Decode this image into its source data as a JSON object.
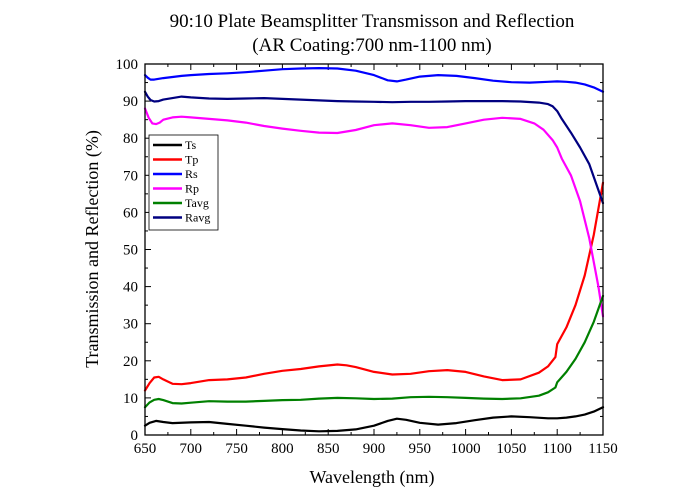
{
  "chart_data": {
    "type": "line",
    "title": "90:10 Plate Beamsplitter Transmisson and Reflection",
    "subtitle": "(AR Coating:700 nm-1100 nm)",
    "xlabel": "Wavelength (nm)",
    "ylabel": "Transmission and Reflection (%)",
    "xlim": [
      650,
      1150
    ],
    "ylim": [
      0,
      100
    ],
    "xticks": [
      650,
      700,
      750,
      800,
      850,
      900,
      950,
      1000,
      1050,
      1100,
      1150
    ],
    "yticks": [
      0,
      10,
      20,
      30,
      40,
      50,
      60,
      70,
      80,
      90,
      100
    ],
    "legend_position": "left",
    "series": [
      {
        "name": "Ts",
        "color": "#000000",
        "x": [
          650,
          655,
          662,
          670,
          680,
          700,
          720,
          740,
          760,
          780,
          800,
          820,
          840,
          860,
          880,
          900,
          915,
          925,
          935,
          950,
          970,
          990,
          1010,
          1030,
          1050,
          1070,
          1090,
          1100,
          1110,
          1120,
          1130,
          1140,
          1150
        ],
        "y": [
          2.5,
          3.3,
          3.8,
          3.5,
          3.2,
          3.4,
          3.5,
          3.0,
          2.5,
          2.0,
          1.6,
          1.2,
          1.0,
          1.1,
          1.5,
          2.5,
          3.8,
          4.4,
          4.1,
          3.3,
          2.8,
          3.2,
          4.0,
          4.7,
          5.0,
          4.8,
          4.5,
          4.5,
          4.7,
          5.0,
          5.5,
          6.3,
          7.5
        ]
      },
      {
        "name": "Tp",
        "color": "#ff0000",
        "x": [
          650,
          655,
          660,
          665,
          670,
          680,
          690,
          700,
          720,
          740,
          760,
          780,
          800,
          820,
          840,
          860,
          870,
          880,
          900,
          920,
          940,
          960,
          980,
          1000,
          1020,
          1040,
          1060,
          1080,
          1090,
          1098,
          1100,
          1110,
          1120,
          1130,
          1140,
          1150
        ],
        "y": [
          12.0,
          14.0,
          15.5,
          15.7,
          15.0,
          13.8,
          13.7,
          14.0,
          14.8,
          15.0,
          15.5,
          16.5,
          17.3,
          17.8,
          18.5,
          19.0,
          18.8,
          18.3,
          17.0,
          16.3,
          16.5,
          17.2,
          17.5,
          17.0,
          15.8,
          14.8,
          15.0,
          16.8,
          18.5,
          21.0,
          24.5,
          29.0,
          35.0,
          43.0,
          54.0,
          68.0
        ]
      },
      {
        "name": "Rs",
        "color": "#0000ff",
        "x": [
          650,
          653,
          656,
          660,
          670,
          680,
          690,
          700,
          720,
          740,
          760,
          780,
          800,
          820,
          840,
          860,
          880,
          900,
          915,
          925,
          935,
          950,
          970,
          990,
          1010,
          1030,
          1050,
          1070,
          1090,
          1100,
          1110,
          1120,
          1130,
          1140,
          1150
        ],
        "y": [
          97.0,
          96.3,
          95.8,
          95.8,
          96.2,
          96.5,
          96.8,
          97.0,
          97.3,
          97.5,
          97.8,
          98.2,
          98.6,
          98.8,
          98.9,
          98.8,
          98.2,
          97.0,
          95.6,
          95.3,
          95.8,
          96.6,
          97.0,
          96.8,
          96.2,
          95.5,
          95.1,
          95.0,
          95.2,
          95.3,
          95.2,
          95.0,
          94.5,
          93.7,
          92.5
        ]
      },
      {
        "name": "Rp",
        "color": "#ff00ff",
        "x": [
          650,
          654,
          658,
          662,
          666,
          670,
          680,
          690,
          700,
          720,
          740,
          760,
          780,
          800,
          820,
          840,
          860,
          880,
          900,
          920,
          940,
          960,
          980,
          1000,
          1020,
          1040,
          1060,
          1075,
          1085,
          1095,
          1100,
          1105,
          1115,
          1125,
          1135,
          1145,
          1150
        ],
        "y": [
          88.0,
          85.5,
          84.0,
          83.8,
          84.2,
          85.0,
          85.6,
          85.8,
          85.6,
          85.2,
          84.8,
          84.2,
          83.3,
          82.6,
          82.0,
          81.5,
          81.4,
          82.2,
          83.5,
          84.0,
          83.5,
          82.8,
          83.0,
          84.0,
          85.0,
          85.5,
          85.2,
          84.0,
          82.3,
          79.5,
          77.5,
          74.5,
          70.0,
          63.0,
          53.0,
          40.0,
          32.0
        ]
      },
      {
        "name": "Tavg",
        "color": "#008000",
        "x": [
          650,
          655,
          660,
          665,
          670,
          680,
          690,
          700,
          720,
          740,
          760,
          780,
          800,
          820,
          840,
          860,
          880,
          900,
          920,
          940,
          960,
          980,
          1000,
          1020,
          1040,
          1060,
          1080,
          1090,
          1098,
          1100,
          1110,
          1120,
          1130,
          1140,
          1150
        ],
        "y": [
          7.5,
          8.8,
          9.5,
          9.7,
          9.4,
          8.6,
          8.5,
          8.7,
          9.1,
          9.0,
          9.0,
          9.2,
          9.4,
          9.5,
          9.8,
          10.0,
          9.9,
          9.7,
          9.8,
          10.2,
          10.3,
          10.2,
          10.0,
          9.8,
          9.7,
          9.9,
          10.6,
          11.5,
          12.8,
          14.2,
          17.0,
          20.5,
          25.0,
          30.5,
          37.5
        ]
      },
      {
        "name": "Ravg",
        "color": "#000080",
        "x": [
          650,
          653,
          656,
          660,
          665,
          670,
          680,
          690,
          700,
          720,
          740,
          760,
          780,
          800,
          820,
          840,
          860,
          880,
          900,
          920,
          940,
          960,
          980,
          1000,
          1020,
          1040,
          1060,
          1080,
          1090,
          1095,
          1100,
          1105,
          1115,
          1125,
          1135,
          1145,
          1150
        ],
        "y": [
          92.5,
          91.2,
          90.3,
          89.9,
          90.0,
          90.4,
          90.8,
          91.2,
          91.0,
          90.7,
          90.6,
          90.7,
          90.8,
          90.6,
          90.4,
          90.2,
          90.0,
          89.9,
          89.8,
          89.7,
          89.8,
          89.8,
          89.9,
          90.0,
          90.0,
          90.0,
          89.9,
          89.6,
          89.2,
          88.6,
          87.3,
          85.2,
          81.5,
          77.5,
          73.0,
          66.0,
          62.5
        ]
      }
    ]
  }
}
